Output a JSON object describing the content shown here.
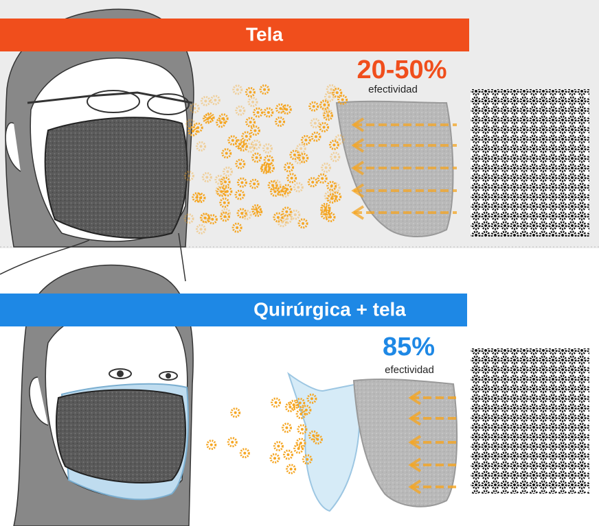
{
  "sections": [
    {
      "title": "Tela",
      "percent": "20-50%",
      "caption": "efectividad"
    },
    {
      "title": "Quirúrgica + tela",
      "percent": "85%",
      "caption": "efectividad"
    }
  ]
}
